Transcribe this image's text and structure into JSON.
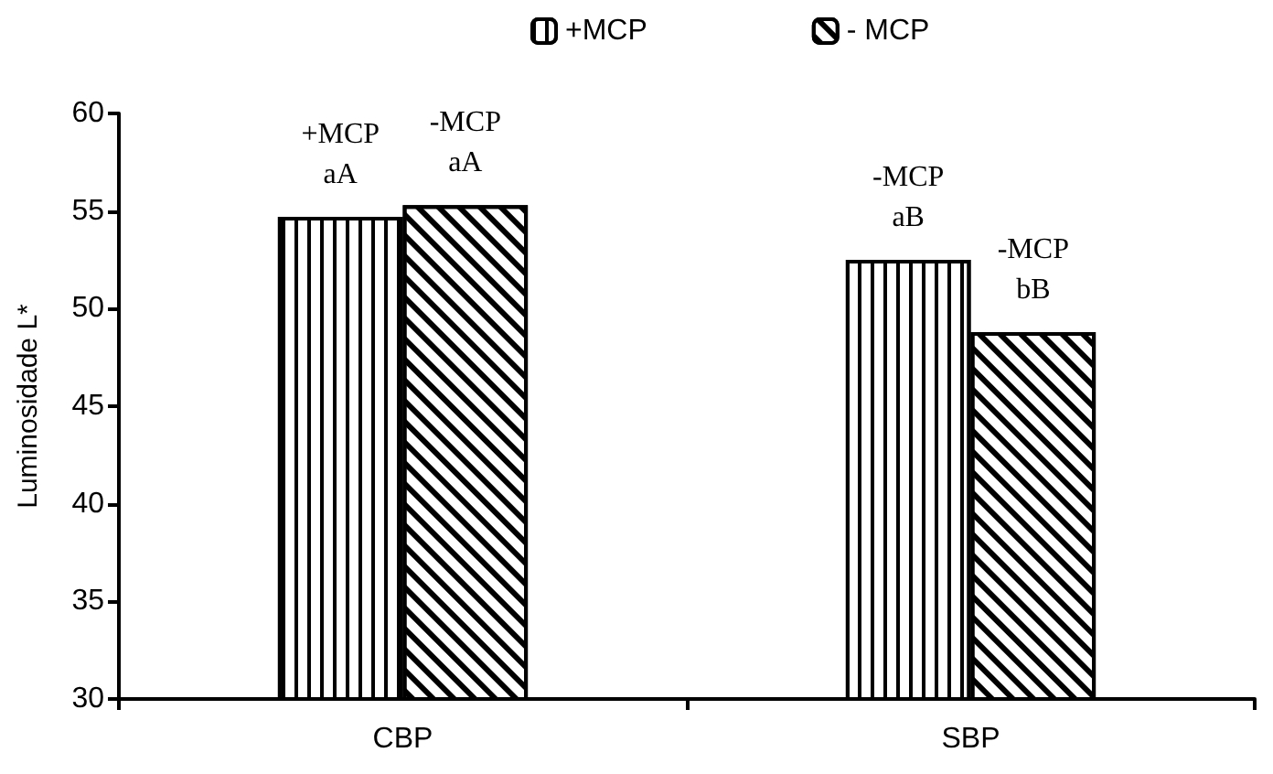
{
  "chart_data": {
    "type": "bar",
    "ylabel": "Luminosidade L*",
    "categories": [
      "CBP",
      "SBP"
    ],
    "series": [
      {
        "name": "+MCP",
        "color": "#000000",
        "values": [
          54.7,
          52.5
        ],
        "value_labels": [
          "+MCP\naA",
          "-MCP\naB"
        ]
      },
      {
        "name": "- MCP",
        "color": "#000000",
        "values": [
          55.3,
          48.8
        ],
        "value_labels": [
          "-MCP\naA",
          "-MCP\nbB"
        ]
      }
    ],
    "ylim": [
      30,
      60
    ],
    "yticks": [
      30,
      35,
      40,
      45,
      50,
      55,
      60
    ],
    "legend": "top",
    "grid": false
  }
}
